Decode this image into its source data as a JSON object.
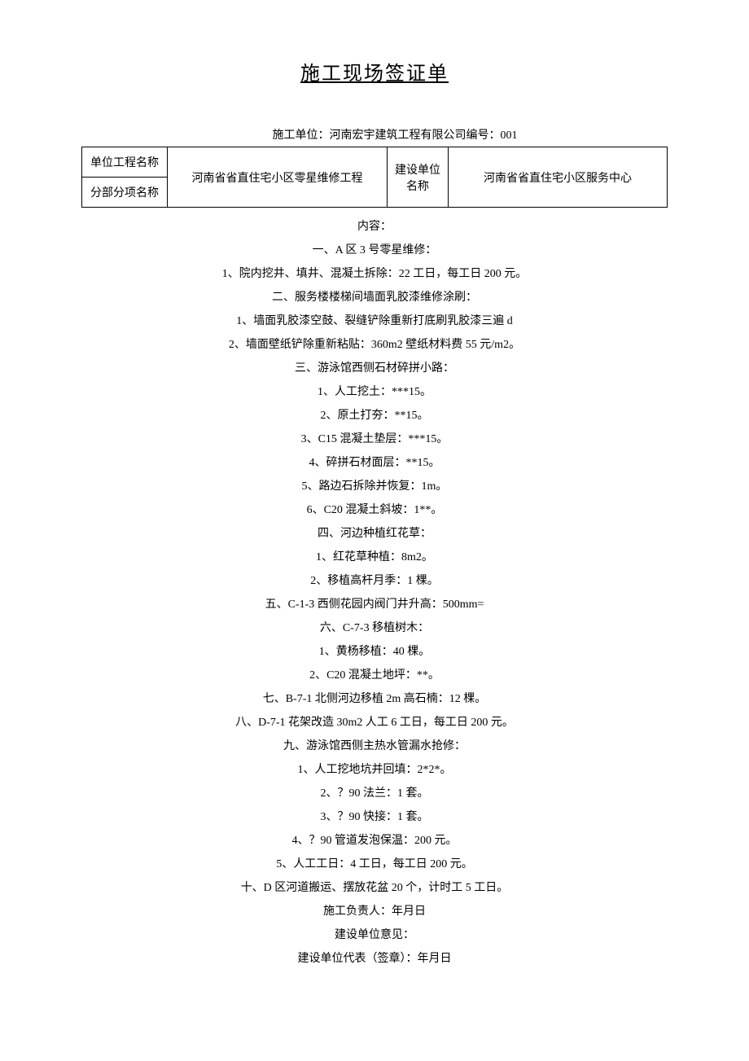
{
  "title": "施工现场签证单",
  "header": "施工单位：河南宏宇建筑工程有限公司编号：001",
  "table": {
    "label1": "单位工程名称",
    "projectName": "河南省省直住宅小区零星维修工程",
    "label2": "建设单位名称",
    "buildUnit": "河南省省直住宅小区服务中心",
    "label3": "分部分项名称",
    "subName": ""
  },
  "lines": [
    "内容：",
    "一、A 区 3 号零星维修：",
    "1、院内挖井、填井、混凝土拆除：22 工日，每工日 200 元。",
    "二、服务楼楼梯间墙面乳胶漆维修涂刷：",
    "1、墙面乳胶漆空鼓、裂缝铲除重新打底刷乳胶漆三遍 d",
    "2、墙面壁纸铲除重新粘贴：360m2 壁纸材料费 55 元/m2。",
    "三、游泳馆西侧石材碎拼小路：",
    "1、人工挖土：***15。",
    "2、原土打夯：**15。",
    "3、C15 混凝土垫层：***15。",
    "4、碎拼石材面层：**15。",
    "5、路边石拆除并恢复：1m。",
    "6、C20 混凝土斜坡：1**。",
    "四、河边种植红花草：",
    "1、红花草种植：8m2。",
    "2、移植高杆月季：1 棵。",
    "五、C-1-3 西侧花园内阀门井升高：500mm=",
    "六、C-7-3 移植树木：",
    "1、黄杨移植：40 棵。",
    "2、C20 混凝土地坪：**。",
    "七、B-7-1 北侧河边移植 2m 高石楠：12 棵。",
    "八、D-7-1 花架改造 30m2 人工 6 工日，每工日 200 元。",
    "九、游泳馆西侧主热水管漏水抢修：",
    "1、人工挖地坑并回填：2*2*。",
    "2、？90 法兰：1 套。",
    "3、？90 快接：1 套。",
    "4、？90 管道发泡保温：200 元。",
    "5、人工工日：4 工日，每工日 200 元。",
    "十、D 区河道搬运、摆放花盆 20 个，计时工 5 工日。",
    "施工负责人：年月日",
    "建设单位意见：",
    "建设单位代表（签章）：年月日"
  ]
}
